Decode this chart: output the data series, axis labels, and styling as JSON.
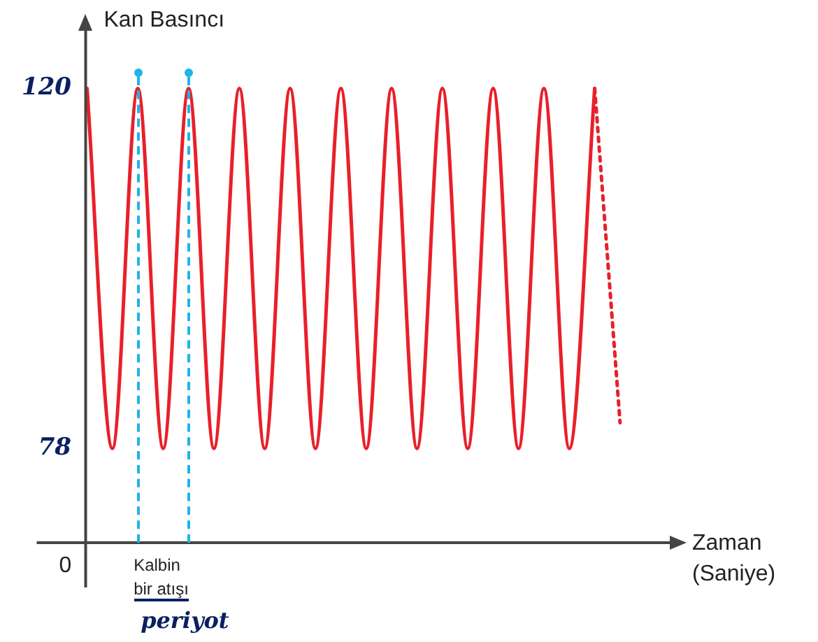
{
  "chart_data": {
    "type": "line",
    "ylabel": "Kan Basıncı",
    "xlabel": "Zaman (Saniye)",
    "categories": [
      null,
      null,
      null,
      null,
      null,
      null,
      null,
      null,
      null,
      null,
      null,
      null,
      null,
      null,
      null,
      null,
      null,
      null,
      null,
      null,
      null,
      null
    ],
    "series": [
      {
        "color": "#e8202a",
        "line_style": "solid",
        "values": [
          120,
          78,
          120,
          78,
          120,
          78,
          120,
          78,
          120,
          78,
          120,
          78,
          120,
          78,
          120,
          78,
          120,
          78,
          120,
          78,
          120,
          null
        ]
      },
      {
        "color": "#e8202a",
        "line_style": "dotted",
        "values": [
          null,
          null,
          null,
          null,
          null,
          null,
          null,
          null,
          null,
          null,
          null,
          null,
          null,
          null,
          null,
          null,
          null,
          null,
          null,
          null,
          120,
          81
        ]
      }
    ],
    "ylim": [
      67,
      128
    ],
    "yticks": [
      78,
      120
    ],
    "annotations": [
      "Kalbin bir atışı",
      "periyot",
      "0"
    ],
    "grid": false,
    "legend": false,
    "marker": "none"
  }
}
